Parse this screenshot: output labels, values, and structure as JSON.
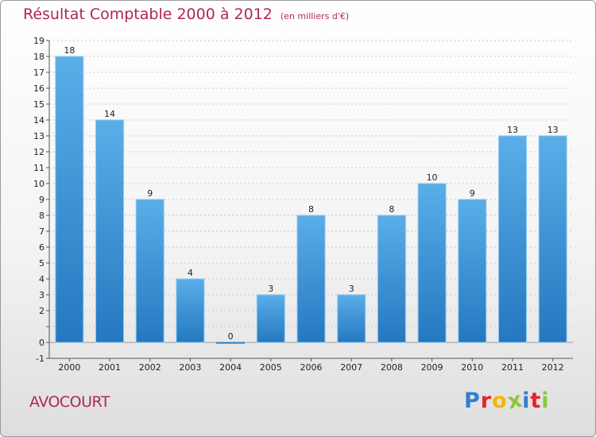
{
  "header": {
    "title": "Résultat Comptable 2000 à 2012",
    "unit": "(en milliers d'€)"
  },
  "footer": {
    "commune": "AVOCOURT",
    "logo_text": "Proxiti",
    "logo_colors": [
      "#2f7fd0",
      "#e3262b",
      "#f7b500",
      "#8cc63f",
      "#2f7fd0",
      "#e3262b",
      "#8cc63f"
    ]
  },
  "colors": {
    "bar_top": "#5aaee8",
    "bar_bottom": "#2478c0",
    "title": "#b0265a"
  },
  "chart_data": {
    "type": "bar",
    "title": "Résultat Comptable 2000 à 2012",
    "subtitle": "(en milliers d'€)",
    "xlabel": "",
    "ylabel": "",
    "categories": [
      "2000",
      "2001",
      "2002",
      "2003",
      "2004",
      "2005",
      "2006",
      "2007",
      "2008",
      "2009",
      "2010",
      "2011",
      "2012"
    ],
    "values": [
      18,
      14,
      9,
      4,
      0,
      3,
      8,
      3,
      8,
      10,
      9,
      13,
      13
    ],
    "data_labels": [
      "18",
      "14",
      "9",
      "4",
      "0",
      "3",
      "8",
      "3",
      "8",
      "10",
      "9",
      "13",
      "13"
    ],
    "ylim": [
      -1,
      19
    ],
    "y_ticks": [
      -1,
      0,
      1,
      2,
      3,
      4,
      5,
      6,
      7,
      8,
      9,
      10,
      11,
      12,
      13,
      14,
      15,
      16,
      17,
      18,
      19
    ],
    "y_tick_labels": [
      "-1",
      "0",
      "",
      "2",
      "3",
      "4",
      "5",
      "6",
      "7",
      "8",
      "9",
      "10",
      "11",
      "12",
      "13",
      "14",
      "15",
      "16",
      "17",
      "18",
      "19"
    ],
    "grid": true
  }
}
